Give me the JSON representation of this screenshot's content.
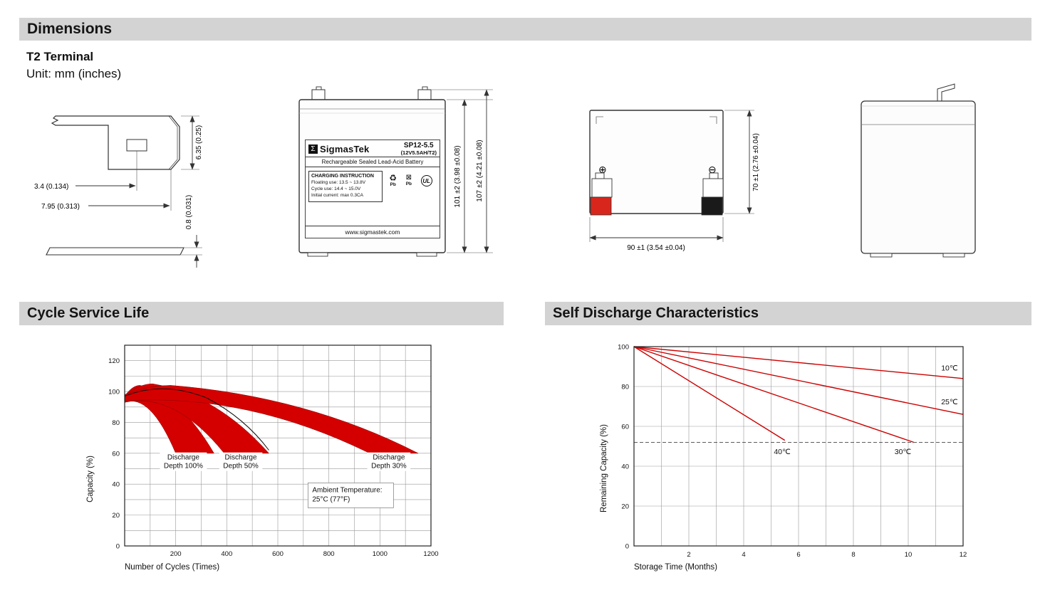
{
  "header": {
    "dimensions_title": "Dimensions"
  },
  "terminal_section": {
    "title": "T2 Terminal",
    "unit": "Unit: mm (inches)"
  },
  "cycle_section": {
    "title": "Cycle Service Life"
  },
  "discharge_section": {
    "title": "Self Discharge Characteristics"
  },
  "drawings": {
    "terminal_detail": {
      "dim_height": "6.35 (0.25)",
      "dim_hole": "3.4 (0.134)",
      "dim_width": "7.95 (0.313)",
      "dim_thickness": "0.8 (0.031)"
    },
    "front_view": {
      "logo_glyph": "Σ",
      "brand": "SigmasTek",
      "model": "SP12-5.5",
      "spec": "(12V5.5AH/T2)",
      "subtitle": "Rechargeable Sealed Lead-Acid Battery",
      "charging_title": "CHARGING INSTRUCTION",
      "charging_line1": "Floating use: 13.5 ~ 13.8V",
      "charging_line2": "Cycle use: 14.4 ~ 15.0V",
      "charging_line3": "Initial current: max 0.3CA",
      "recycle_icon": "♻",
      "trash_icon": "⊠",
      "pb_label1": "Pb",
      "pb_label2": "Pb",
      "ul_label": "UL",
      "website": "www.sigmastek.com",
      "dim_body_height": "101 ±2 (3.98 ±0.08)",
      "dim_total_height": "107 ±2 (4.21 ±0.08)"
    },
    "rear_view": {
      "plus_symbol": "⊕",
      "minus_symbol": "⊖",
      "positive_terminal_color": "#d9261c",
      "negative_terminal_color": "#1a1a1a",
      "dim_height": "70 ±1 (2.76 ±0.04)",
      "dim_width": "90 ±1 (3.54 ±0.04)"
    }
  },
  "chart_data": [
    {
      "type": "area",
      "title": "Cycle Service Life",
      "xlabel": "Number of Cycles (Times)",
      "ylabel": "Capacity (%)",
      "xlim": [
        0,
        1200
      ],
      "ylim": [
        0,
        130
      ],
      "x_ticks": [
        200,
        400,
        600,
        800,
        1000,
        1200
      ],
      "y_ticks": [
        0,
        20,
        40,
        60,
        80,
        100,
        120
      ],
      "grid": {
        "x_step": 100,
        "y_step": 10
      },
      "band_color": "#d40000",
      "end_capacity": 60,
      "bands": [
        {
          "name": "Discharge Depth 100%",
          "start_capacity": 97,
          "peak_x": 60,
          "peak_capacity": 104,
          "cycles_to_60pct_max": 350,
          "cycles_to_60pct_min": 200
        },
        {
          "name": "Discharge Depth 50%",
          "start_capacity": 97,
          "peak_x": 110,
          "peak_capacity": 105,
          "cycles_to_60pct_max": 565,
          "cycles_to_60pct_min": 390
        },
        {
          "name": "Discharge Depth 30%",
          "start_capacity": 98,
          "peak_x": 180,
          "peak_capacity": 104,
          "cycles_to_60pct_max": 1150,
          "cycles_to_60pct_min": 960
        }
      ],
      "annotations": [
        {
          "lines": [
            "Discharge",
            "Depth 100%"
          ],
          "x": 230,
          "y": 55,
          "align": "center",
          "boxed": false
        },
        {
          "lines": [
            "Discharge",
            "Depth 50%"
          ],
          "x": 455,
          "y": 55,
          "align": "center",
          "boxed": false
        },
        {
          "lines": [
            "Discharge",
            "Depth 30%"
          ],
          "x": 1035,
          "y": 55,
          "align": "center",
          "boxed": false
        },
        {
          "lines": [
            "Ambient Temperature:",
            "25°C (77°F)"
          ],
          "x": 735,
          "y": 33,
          "align": "left",
          "boxed": true
        }
      ]
    },
    {
      "type": "line",
      "title": "Self Discharge Characteristics",
      "xlabel": "Storage Time (Months)",
      "ylabel": "Remaining Capacity (%)",
      "xlim": [
        0,
        12
      ],
      "ylim": [
        0,
        100
      ],
      "x_ticks": [
        2,
        4,
        6,
        8,
        10,
        12
      ],
      "y_ticks": [
        0,
        20,
        40,
        60,
        80,
        100
      ],
      "grid": {
        "x_step": 1,
        "y_step": 20
      },
      "line_color": "#cc0000",
      "series": [
        {
          "name": "10℃",
          "points": [
            [
              0,
              100
            ],
            [
              12,
              84
            ]
          ],
          "label_x": 11.2,
          "label_y": 88
        },
        {
          "name": "25℃",
          "points": [
            [
              0,
              100
            ],
            [
              12,
              66
            ]
          ],
          "label_x": 11.2,
          "label_y": 71
        },
        {
          "name": "30℃",
          "points": [
            [
              0,
              100
            ],
            [
              10.2,
              52
            ]
          ],
          "label_x": 9.5,
          "label_y": 46
        },
        {
          "name": "40℃",
          "points": [
            [
              0,
              100
            ],
            [
              5.5,
              53
            ]
          ],
          "label_x": 5.1,
          "label_y": 46
        }
      ],
      "dashed_reference_capacity": 52
    }
  ]
}
